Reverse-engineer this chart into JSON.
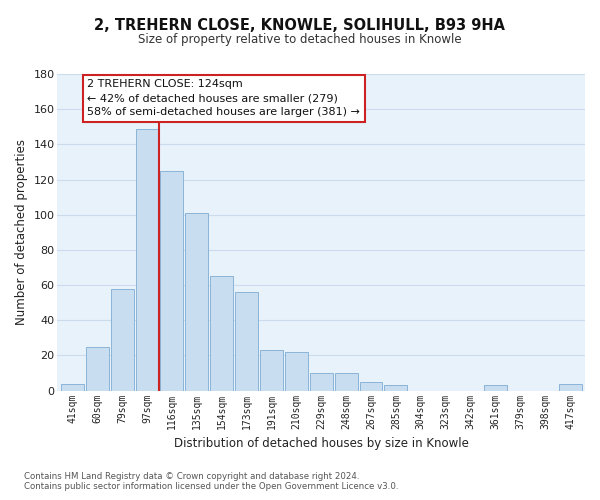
{
  "title": "2, TREHERN CLOSE, KNOWLE, SOLIHULL, B93 9HA",
  "subtitle": "Size of property relative to detached houses in Knowle",
  "xlabel": "Distribution of detached houses by size in Knowle",
  "ylabel": "Number of detached properties",
  "bar_labels": [
    "41sqm",
    "60sqm",
    "79sqm",
    "97sqm",
    "116sqm",
    "135sqm",
    "154sqm",
    "173sqm",
    "191sqm",
    "210sqm",
    "229sqm",
    "248sqm",
    "267sqm",
    "285sqm",
    "304sqm",
    "323sqm",
    "342sqm",
    "361sqm",
    "379sqm",
    "398sqm",
    "417sqm"
  ],
  "bar_values": [
    4,
    25,
    58,
    149,
    125,
    101,
    65,
    56,
    23,
    22,
    10,
    10,
    5,
    3,
    0,
    0,
    0,
    3,
    0,
    0,
    4
  ],
  "bar_color": "#c9ddf0",
  "bar_edge_color": "#8ab4d8",
  "highlight_bar_index": 4,
  "vline_color": "#cc2222",
  "vline_position": 4.0,
  "ylim": [
    0,
    180
  ],
  "yticks": [
    0,
    20,
    40,
    60,
    80,
    100,
    120,
    140,
    160,
    180
  ],
  "annotation_title": "2 TREHERN CLOSE: 124sqm",
  "annotation_line1": "← 42% of detached houses are smaller (279)",
  "annotation_line2": "58% of semi-detached houses are larger (381) →",
  "annotation_box_facecolor": "#ffffff",
  "annotation_box_edgecolor": "#cc2222",
  "footnote1": "Contains HM Land Registry data © Crown copyright and database right 2024.",
  "footnote2": "Contains public sector information licensed under the Open Government Licence v3.0.",
  "grid_color": "#ccdcec",
  "background_color": "#e8f2fb",
  "title_fontsize": 10.5,
  "subtitle_fontsize": 8.5
}
